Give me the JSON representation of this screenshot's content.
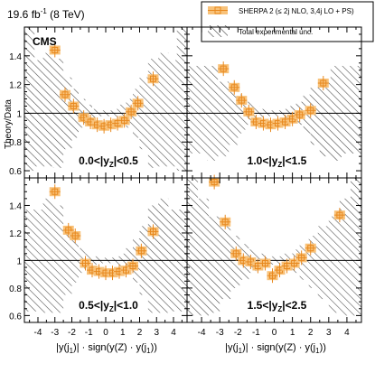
{
  "header": {
    "lumi": "19.6 fb",
    "lumi_sup": "-1",
    "energy": "(8 TeV)",
    "cms": "CMS"
  },
  "axes": {
    "ylabel": "Theory/Data",
    "xlabel_left": "|y(j",
    "xlabel_sub": "1",
    "xlabel_mid": ")| · sign(y(Z) · y(j",
    "xlabel_end": "))"
  },
  "legend": {
    "mc_label": "SHERPA 2 (≤ 2j NLO, 3,4j LO + PS)",
    "unc_label": "Total experimental unc."
  },
  "colors": {
    "mc_fill": "#f8c27a",
    "mc_line": "#e8891f",
    "hatch": "#444444"
  },
  "chart_data": [
    {
      "type": "scatter",
      "panel": "top-left",
      "label": "0.0<|y_Z|<0.5",
      "label_parts": [
        "0.0<|y",
        "Z",
        "|<0.5"
      ],
      "xlim": [
        -4.8,
        4.8
      ],
      "ylim": [
        0.55,
        1.6
      ],
      "x": [
        -3.0,
        -2.4,
        -1.9,
        -1.3,
        -0.9,
        -0.5,
        -0.1,
        0.3,
        0.7,
        1.1,
        1.5,
        1.9,
        2.8
      ],
      "y": [
        1.44,
        1.13,
        1.05,
        0.97,
        0.94,
        0.92,
        0.91,
        0.92,
        0.93,
        0.95,
        1.01,
        1.07,
        1.24
      ],
      "unc": [
        [
          -4.8,
          -4.2,
          1.6,
          0.6
        ],
        [
          -4.2,
          -3.7,
          1.37,
          0.63
        ],
        [
          -3.7,
          -3.1,
          1.42,
          0.63
        ],
        [
          -3.1,
          -2.5,
          1.38,
          0.62
        ],
        [
          -2.5,
          -2.0,
          1.25,
          0.75
        ],
        [
          -2.0,
          -1.6,
          1.17,
          0.83
        ],
        [
          -1.6,
          -1.2,
          1.1,
          0.9
        ],
        [
          -1.2,
          -0.8,
          1.06,
          0.94
        ],
        [
          -0.8,
          -0.4,
          1.03,
          0.97
        ],
        [
          -0.4,
          0.4,
          1.02,
          0.98
        ],
        [
          0.4,
          0.8,
          1.03,
          0.97
        ],
        [
          0.8,
          1.2,
          1.06,
          0.94
        ],
        [
          1.2,
          1.6,
          1.1,
          0.9
        ],
        [
          1.6,
          2.0,
          1.17,
          0.83
        ],
        [
          2.0,
          2.5,
          1.25,
          0.75
        ],
        [
          2.5,
          3.1,
          1.38,
          0.62
        ],
        [
          3.1,
          3.7,
          1.42,
          0.63
        ],
        [
          3.7,
          4.2,
          1.37,
          0.63
        ],
        [
          4.2,
          4.8,
          1.6,
          0.6
        ]
      ]
    },
    {
      "type": "scatter",
      "panel": "top-right",
      "label": "1.0<|y_Z|<1.5",
      "label_parts": [
        "1.0<|y",
        "Z",
        "|<1.5"
      ],
      "xlim": [
        -4.8,
        4.8
      ],
      "ylim": [
        0.55,
        1.6
      ],
      "x": [
        -2.8,
        -2.2,
        -1.8,
        -1.4,
        -1.0,
        -0.6,
        -0.2,
        0.2,
        0.6,
        1.0,
        1.4,
        2.0,
        2.7
      ],
      "y": [
        1.31,
        1.18,
        1.09,
        1.01,
        0.94,
        0.93,
        0.92,
        0.93,
        0.94,
        0.96,
        0.99,
        1.02,
        1.21
      ],
      "unc": [
        [
          -4.8,
          -3.7,
          1.33,
          0.72
        ],
        [
          -3.7,
          -3.1,
          1.33,
          0.67
        ],
        [
          -3.1,
          -2.5,
          1.22,
          0.7
        ],
        [
          -2.5,
          -2.0,
          1.18,
          0.78
        ],
        [
          -2.0,
          -1.6,
          1.13,
          0.86
        ],
        [
          -1.6,
          -1.2,
          1.08,
          0.92
        ],
        [
          -1.2,
          -0.8,
          1.05,
          0.95
        ],
        [
          -0.8,
          -0.4,
          1.03,
          0.97
        ],
        [
          -0.4,
          0.4,
          1.02,
          0.98
        ],
        [
          0.4,
          0.8,
          1.03,
          0.97
        ],
        [
          0.8,
          1.2,
          1.05,
          0.95
        ],
        [
          1.2,
          1.6,
          1.08,
          0.92
        ],
        [
          1.6,
          2.0,
          1.13,
          0.86
        ],
        [
          2.0,
          2.5,
          1.18,
          0.78
        ],
        [
          2.5,
          3.1,
          1.22,
          0.7
        ],
        [
          3.1,
          3.7,
          1.33,
          0.67
        ],
        [
          3.7,
          4.8,
          1.33,
          0.72
        ]
      ]
    },
    {
      "type": "scatter",
      "panel": "bottom-left",
      "label": "0.5<|y_Z|<1.0",
      "label_parts": [
        "0.5<|y",
        "Z",
        "|<1.0"
      ],
      "xlim": [
        -4.8,
        4.8
      ],
      "ylim": [
        0.55,
        1.6
      ],
      "x": [
        -3.0,
        -2.2,
        -1.8,
        -1.2,
        -0.8,
        -0.4,
        0.0,
        0.4,
        0.8,
        1.2,
        1.6,
        2.1,
        2.8
      ],
      "y": [
        1.5,
        1.22,
        1.18,
        0.98,
        0.93,
        0.92,
        0.91,
        0.91,
        0.92,
        0.93,
        0.96,
        1.07,
        1.21
      ],
      "unc": [
        [
          -4.8,
          -3.7,
          1.37,
          0.63
        ],
        [
          -3.7,
          -3.1,
          1.45,
          0.62
        ],
        [
          -3.1,
          -2.5,
          1.4,
          0.62
        ],
        [
          -2.5,
          -2.0,
          1.25,
          0.75
        ],
        [
          -2.0,
          -1.6,
          1.16,
          0.84
        ],
        [
          -1.6,
          -1.2,
          1.09,
          0.91
        ],
        [
          -1.2,
          -0.8,
          1.05,
          0.95
        ],
        [
          -0.8,
          -0.4,
          1.03,
          0.97
        ],
        [
          -0.4,
          0.4,
          1.02,
          0.98
        ],
        [
          0.4,
          0.8,
          1.03,
          0.97
        ],
        [
          0.8,
          1.2,
          1.05,
          0.95
        ],
        [
          1.2,
          1.6,
          1.09,
          0.91
        ],
        [
          1.6,
          2.0,
          1.16,
          0.84
        ],
        [
          2.0,
          2.5,
          1.25,
          0.75
        ],
        [
          2.5,
          3.1,
          1.4,
          0.62
        ],
        [
          3.1,
          3.7,
          1.45,
          0.62
        ],
        [
          3.7,
          4.8,
          1.37,
          0.63
        ]
      ]
    },
    {
      "type": "scatter",
      "panel": "bottom-right",
      "label": "1.5<|y_Z|<2.5",
      "label_parts": [
        "1.5<|y",
        "Z",
        "|<2.5"
      ],
      "xlim": [
        -4.8,
        4.8
      ],
      "ylim": [
        0.55,
        1.6
      ],
      "x": [
        -3.3,
        -2.7,
        -2.1,
        -1.7,
        -1.3,
        -0.9,
        -0.5,
        -0.1,
        0.3,
        0.7,
        1.1,
        1.5,
        2.0,
        3.6
      ],
      "y": [
        1.57,
        1.28,
        1.05,
        1.0,
        0.99,
        0.96,
        0.98,
        0.89,
        0.93,
        0.96,
        0.98,
        1.02,
        1.09,
        1.33
      ],
      "unc": [
        [
          -4.8,
          -4.2,
          1.6,
          0.6
        ],
        [
          -4.2,
          -3.6,
          1.45,
          0.6
        ],
        [
          -3.6,
          -3.0,
          1.32,
          0.62
        ],
        [
          -3.0,
          -2.4,
          1.25,
          0.72
        ],
        [
          -2.4,
          -1.9,
          1.18,
          0.8
        ],
        [
          -1.9,
          -1.4,
          1.12,
          0.86
        ],
        [
          -1.4,
          -1.0,
          1.08,
          0.91
        ],
        [
          -1.0,
          -0.5,
          1.05,
          0.95
        ],
        [
          -0.5,
          0.5,
          1.03,
          0.97
        ],
        [
          0.5,
          1.0,
          1.05,
          0.95
        ],
        [
          1.0,
          1.4,
          1.08,
          0.91
        ],
        [
          1.4,
          1.9,
          1.12,
          0.86
        ],
        [
          1.9,
          2.4,
          1.18,
          0.8
        ],
        [
          2.4,
          3.0,
          1.25,
          0.72
        ],
        [
          3.0,
          3.6,
          1.32,
          0.62
        ],
        [
          3.6,
          4.2,
          1.45,
          0.6
        ],
        [
          4.2,
          4.8,
          1.6,
          0.6
        ]
      ]
    }
  ],
  "ticks": {
    "y": [
      {
        "value": 0.6,
        "label": "0.6"
      },
      {
        "value": 0.8,
        "label": "0.8"
      },
      {
        "value": 1.0,
        "label": "1"
      },
      {
        "value": 1.2,
        "label": "1.2"
      },
      {
        "value": 1.4,
        "label": "1.4"
      }
    ],
    "x": [
      {
        "value": -4,
        "label": "-4"
      },
      {
        "value": -3,
        "label": "-3"
      },
      {
        "value": -2,
        "label": "-2"
      },
      {
        "value": -1,
        "label": "-1"
      },
      {
        "value": 0,
        "label": "0"
      },
      {
        "value": 1,
        "label": "1"
      },
      {
        "value": 2,
        "label": "2"
      },
      {
        "value": 3,
        "label": "3"
      },
      {
        "value": 4,
        "label": "4"
      }
    ]
  }
}
